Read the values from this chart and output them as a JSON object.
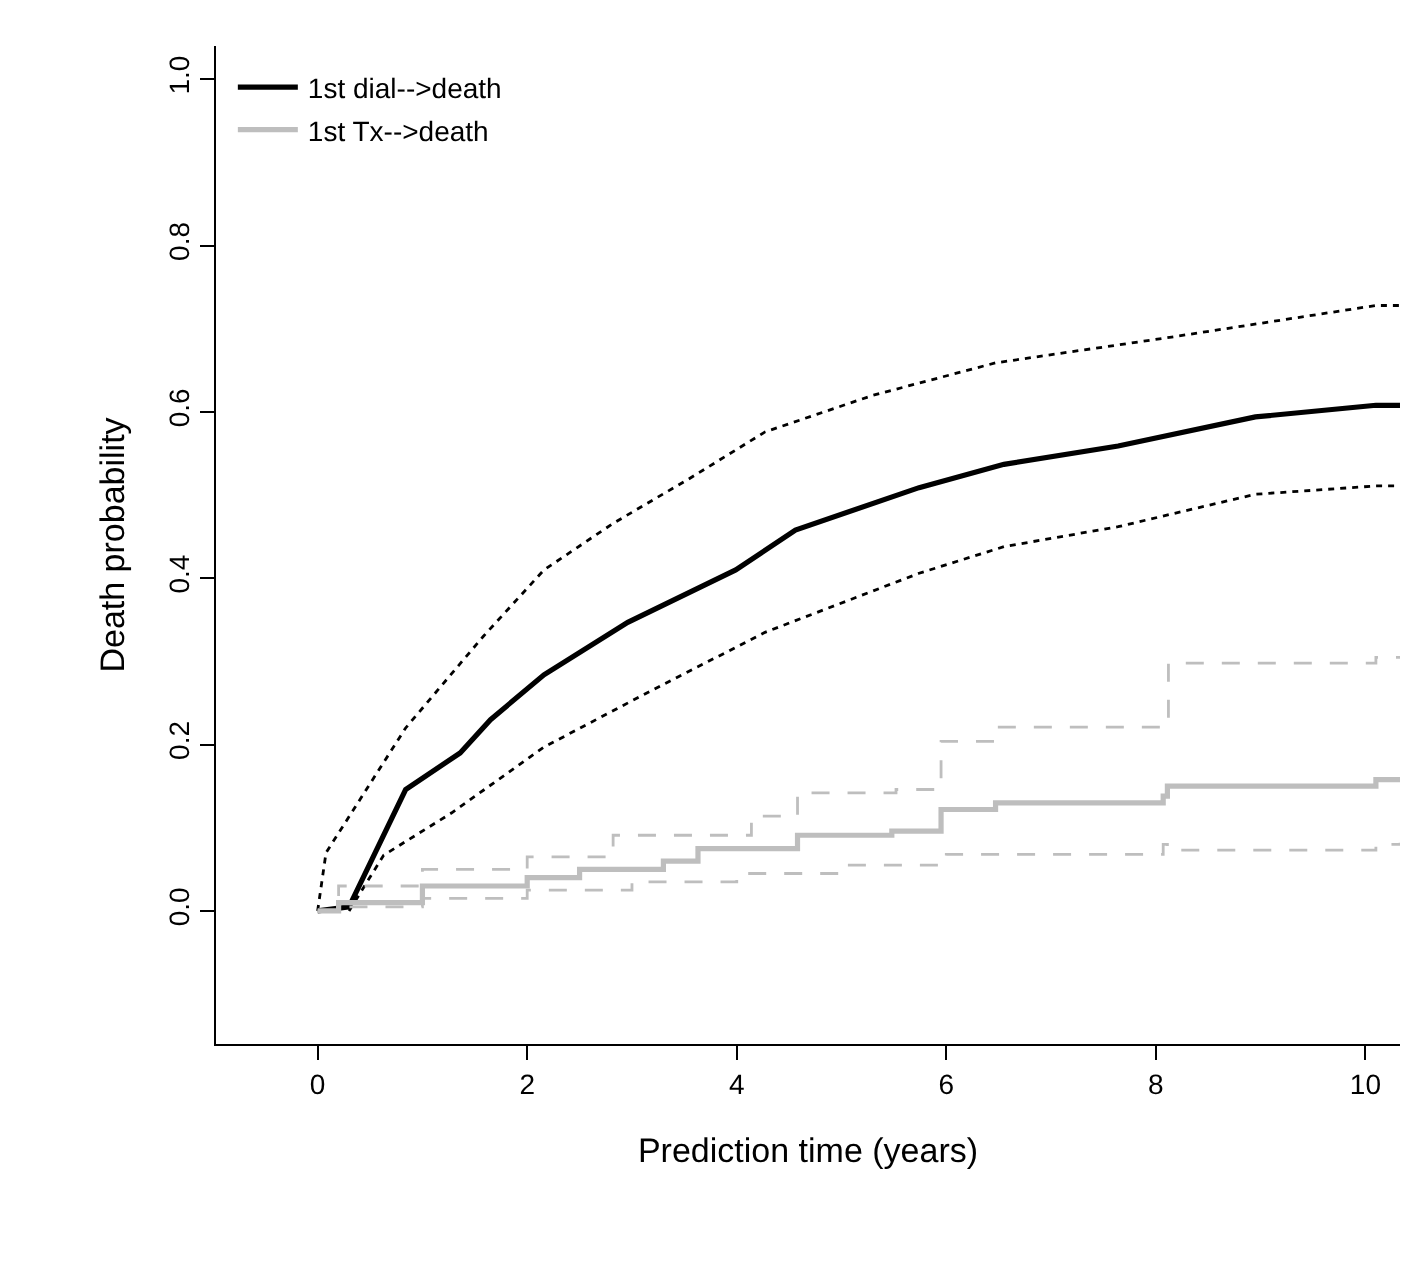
{
  "chart_data": {
    "type": "line",
    "xlabel": "Prediction time (years)",
    "ylabel": "Death probability",
    "xlim": [
      -0.97,
      10.33
    ],
    "ylim": [
      -0.16,
      1.04
    ],
    "xticks": [
      0,
      2,
      4,
      6,
      8,
      10
    ],
    "yticks": [
      {
        "value": 0,
        "label": "0.0"
      },
      0.2,
      0.4,
      0.6,
      0.8,
      {
        "value": 1,
        "label": "1.0"
      }
    ],
    "grid": false,
    "legend": "top left",
    "marker": "none",
    "series": [
      {
        "name": "1st dial-->death",
        "color": "#000000",
        "line_style": "solid",
        "x": [
          0,
          0.3,
          0.84,
          1.36,
          1.65,
          2.16,
          2.96,
          3.99,
          4.56,
          5.74,
          6.55,
          7.64,
          8.95,
          10.1,
          10.33
        ],
        "values": [
          0,
          0.005,
          0.146,
          0.19,
          0.23,
          0.284,
          0.347,
          0.41,
          0.458,
          0.509,
          0.537,
          0.559,
          0.594,
          0.608,
          0.608
        ]
      },
      {
        "color": "#000000",
        "line_style": "dotted",
        "x": [
          0,
          0.08,
          0.84,
          1.58,
          2.16,
          2.82,
          3.55,
          4.27,
          5.3,
          6.47,
          8.15,
          10.1,
          10.33
        ],
        "values": [
          0,
          0.07,
          0.22,
          0.33,
          0.41,
          0.466,
          0.52,
          0.576,
          0.62,
          0.659,
          0.69,
          0.728,
          0.728
        ]
      },
      {
        "color": "#000000",
        "line_style": "dotted",
        "x": [
          0.3,
          0.63,
          1.28,
          2.16,
          3.11,
          4.27,
          5.74,
          6.55,
          7.64,
          8.95,
          10.1,
          10.33
        ],
        "values": [
          0,
          0.067,
          0.118,
          0.197,
          0.26,
          0.335,
          0.406,
          0.438,
          0.462,
          0.501,
          0.511,
          0.511
        ]
      },
      {
        "name": "1st Tx-->death",
        "type": "step",
        "color": "#bebebe",
        "line_style": "solid",
        "x": [
          0,
          0.2,
          1,
          2,
          2.5,
          3.3,
          3.63,
          4.58,
          5.48,
          5.95,
          6.47,
          8.07,
          8.11,
          10.1,
          10.33
        ],
        "values": [
          0,
          0.01,
          0.03,
          0.04,
          0.05,
          0.06,
          0.075,
          0.091,
          0.096,
          0.122,
          0.13,
          0.138,
          0.15,
          0.158,
          0.158
        ]
      },
      {
        "type": "step",
        "color": "#bebebe",
        "line_style": "dashed",
        "x": [
          0,
          0.2,
          1,
          2,
          2.82,
          4.14,
          4.58,
          5.52,
          5.95,
          6.47,
          8.11,
          8.12,
          10.1,
          10.33
        ],
        "values": [
          0,
          0.03,
          0.05,
          0.065,
          0.091,
          0.114,
          0.142,
          0.146,
          0.204,
          0.221,
          0.227,
          0.298,
          0.305,
          0.305
        ]
      },
      {
        "type": "step",
        "color": "#bebebe",
        "line_style": "dashed",
        "x": [
          0,
          0.2,
          1,
          2,
          3,
          4,
          5,
          6,
          8.07,
          8.11,
          10.1,
          10.33
        ],
        "values": [
          0,
          0.005,
          0.015,
          0.025,
          0.035,
          0.045,
          0.055,
          0.068,
          0.08,
          0.073,
          0.08,
          0.082
        ]
      }
    ]
  }
}
